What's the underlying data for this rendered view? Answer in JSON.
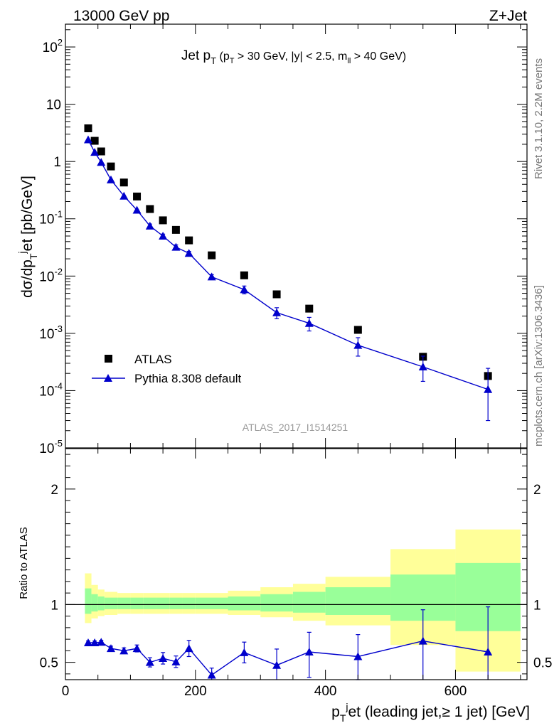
{
  "header": {
    "left": "13000 GeV pp",
    "right": "Z+Jet"
  },
  "side_labels": {
    "rivet": "Rivet 3.1.10,  2.2M events",
    "mcplots": "mcplots.cern.ch [arXiv:1306.3436]"
  },
  "watermark": "ATLAS_2017_I1514251",
  "chart_data": [
    {
      "type": "scatter",
      "panel": "main",
      "title": "Jet p_T (p_T > 30 GeV, |y| < 2.5, m_ll > 40 GeV)",
      "ylabel": "dσ/dp_T^jet [pb/GeV]",
      "yscale": "log",
      "ylim": [
        1e-05,
        250
      ],
      "xlim": [
        0,
        710
      ],
      "y_tick_labels": [
        "10^-5",
        "10^-4",
        "10^-3",
        "10^-2",
        "10^-1",
        "1",
        "10",
        "10^2"
      ],
      "legend_position": "bottom-left",
      "series": [
        {
          "name": "ATLAS",
          "marker": "square",
          "color": "#000000",
          "x": [
            35,
            45,
            55,
            70,
            90,
            110,
            130,
            150,
            170,
            190,
            225,
            275,
            325,
            375,
            450,
            550,
            650
          ],
          "y": [
            3.8,
            2.3,
            1.5,
            0.82,
            0.43,
            0.245,
            0.148,
            0.094,
            0.064,
            0.042,
            0.023,
            0.0103,
            0.0048,
            0.0027,
            0.00115,
            0.00039,
            0.00018
          ]
        },
        {
          "name": "Pythia 8.308 default",
          "marker": "triangle",
          "color": "#0000cc",
          "x": [
            35,
            45,
            55,
            70,
            90,
            110,
            130,
            150,
            170,
            190,
            225,
            275,
            325,
            375,
            450,
            550,
            650
          ],
          "y": [
            2.4,
            1.45,
            0.97,
            0.48,
            0.25,
            0.142,
            0.075,
            0.05,
            0.032,
            0.025,
            0.0097,
            0.0058,
            0.0023,
            0.0015,
            0.00062,
            0.00026,
            0.000105
          ],
          "err_low": [
            0.1,
            0.07,
            0.05,
            0.025,
            0.013,
            0.008,
            0.006,
            0.004,
            0.003,
            0.002,
            0.0009,
            0.0009,
            0.0005,
            0.0004,
            0.00022,
            0.000115,
            7.5e-05
          ],
          "err_high": [
            0.1,
            0.07,
            0.05,
            0.025,
            0.013,
            0.008,
            0.006,
            0.004,
            0.003,
            0.002,
            0.0009,
            0.0009,
            0.0005,
            0.0004,
            0.00022,
            0.00014,
            0.00014
          ]
        }
      ]
    },
    {
      "type": "line",
      "panel": "ratio",
      "ylabel": "Ratio to ATLAS",
      "xlabel": "p_T^jet (leading jet,≥ 1 jet) [GeV]",
      "ylim": [
        0.35,
        2.35
      ],
      "xlim": [
        0,
        710
      ],
      "x_ticks": [
        0,
        200,
        400,
        600
      ],
      "y_ticks": [
        0.5,
        1,
        2
      ],
      "reference_line": 1,
      "bands": {
        "edges": [
          30,
          40,
          50,
          60,
          80,
          100,
          120,
          140,
          160,
          180,
          200,
          250,
          300,
          350,
          400,
          500,
          600,
          700
        ],
        "inner_color": "#99ff99",
        "outer_color": "#ffff99",
        "inner_low": [
          0.92,
          0.94,
          0.95,
          0.96,
          0.96,
          0.96,
          0.96,
          0.96,
          0.96,
          0.96,
          0.96,
          0.95,
          0.94,
          0.93,
          0.91,
          0.86,
          0.77
        ],
        "inner_high": [
          1.14,
          1.09,
          1.07,
          1.06,
          1.06,
          1.06,
          1.06,
          1.06,
          1.06,
          1.06,
          1.06,
          1.07,
          1.09,
          1.11,
          1.15,
          1.26,
          1.36
        ],
        "outer_low": [
          0.84,
          0.88,
          0.9,
          0.91,
          0.92,
          0.92,
          0.92,
          0.92,
          0.92,
          0.92,
          0.92,
          0.91,
          0.89,
          0.86,
          0.82,
          0.65,
          0.42
        ],
        "outer_high": [
          1.27,
          1.17,
          1.13,
          1.11,
          1.1,
          1.1,
          1.1,
          1.1,
          1.1,
          1.1,
          1.1,
          1.12,
          1.15,
          1.18,
          1.24,
          1.48,
          1.65
        ]
      },
      "series": [
        {
          "name": "Pythia 8.308 default",
          "color": "#0000cc",
          "x": [
            35,
            45,
            55,
            70,
            90,
            110,
            130,
            150,
            170,
            190,
            225,
            275,
            325,
            375,
            450,
            550,
            650
          ],
          "y": [
            0.67,
            0.67,
            0.675,
            0.62,
            0.6,
            0.62,
            0.5,
            0.535,
            0.505,
            0.62,
            0.39,
            0.585,
            0.475,
            0.59,
            0.55,
            0.685,
            0.59
          ],
          "err_low": [
            0.015,
            0.015,
            0.015,
            0.02,
            0.025,
            0.03,
            0.04,
            0.05,
            0.05,
            0.07,
            0.06,
            0.09,
            0.14,
            0.22,
            0.2,
            0.35,
            0.42
          ],
          "err_high": [
            0.015,
            0.015,
            0.015,
            0.02,
            0.025,
            0.03,
            0.04,
            0.05,
            0.05,
            0.07,
            0.06,
            0.09,
            0.14,
            0.17,
            0.19,
            0.27,
            0.39
          ]
        }
      ]
    }
  ]
}
